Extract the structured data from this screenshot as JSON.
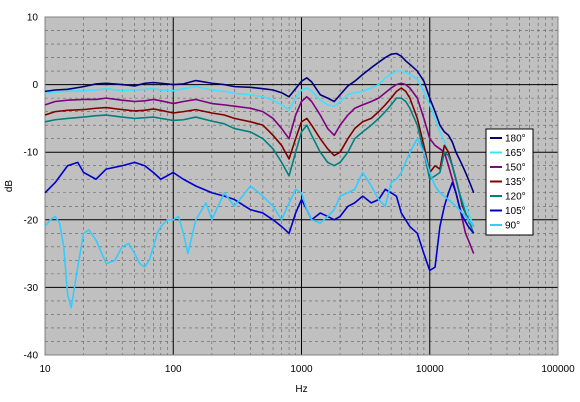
{
  "chart_data": {
    "type": "line",
    "title": "",
    "xlabel": "Hz",
    "ylabel": "dB",
    "x_scale": "log",
    "xlim": [
      10,
      100000
    ],
    "ylim": [
      -40,
      10
    ],
    "x_ticks": [
      10,
      100,
      1000,
      10000,
      100000
    ],
    "x_tick_labels": [
      "10",
      "100",
      "1000",
      "10000",
      "100000"
    ],
    "y_ticks": [
      10,
      0,
      -10,
      -20,
      -30,
      -40
    ],
    "y_tick_labels": [
      "10",
      "0",
      "-10",
      "-20",
      "-30",
      "-40"
    ],
    "grid": "major solid, minor dashed",
    "legend_position": "right",
    "plot_background": "#c0c0c0",
    "series": [
      {
        "name": "180°",
        "color": "#000080",
        "x": [
          10,
          12,
          15,
          20,
          25,
          30,
          40,
          50,
          60,
          70,
          80,
          100,
          120,
          150,
          200,
          250,
          300,
          400,
          500,
          600,
          700,
          800,
          900,
          1000,
          1100,
          1200,
          1400,
          1600,
          1800,
          2000,
          2300,
          2600,
          3000,
          3500,
          4000,
          4500,
          5000,
          5500,
          6000,
          6500,
          7000,
          8000,
          9000,
          10000,
          11000,
          12000,
          13000,
          14000,
          15000,
          16000,
          17000,
          18000,
          19000,
          20000,
          21000,
          22000
        ],
        "y": [
          -1,
          -0.8,
          -0.7,
          -0.3,
          0.1,
          0.2,
          0,
          -0.2,
          0.2,
          0.3,
          0.2,
          0,
          0.1,
          0.6,
          0.2,
          0,
          -0.3,
          -0.4,
          -0.6,
          -0.8,
          -1.2,
          -1.8,
          -0.6,
          0.5,
          1.0,
          0.4,
          -1.5,
          -2.0,
          -2.5,
          -1.5,
          -0.2,
          0.5,
          1.5,
          2.5,
          3.3,
          4.0,
          4.5,
          4.6,
          4.2,
          3.5,
          3.0,
          2.0,
          0.5,
          -2,
          -4,
          -6,
          -7,
          -7.5,
          -8.5,
          -10,
          -11,
          -12,
          -13,
          -14,
          -15,
          -16
        ]
      },
      {
        "name": "165°",
        "color": "#40e0ff",
        "x": [
          10,
          12,
          15,
          20,
          25,
          30,
          40,
          50,
          60,
          70,
          80,
          100,
          120,
          150,
          200,
          250,
          300,
          400,
          500,
          600,
          700,
          800,
          900,
          1000,
          1100,
          1200,
          1400,
          1600,
          1800,
          2000,
          2300,
          2600,
          3000,
          3500,
          4000,
          4500,
          5000,
          5500,
          6000,
          6500,
          7000,
          8000,
          9000,
          10000,
          11000,
          12000,
          13000,
          14000,
          15000,
          16000,
          17000,
          18000,
          19000,
          20000,
          21000,
          22000
        ],
        "y": [
          -1.3,
          -1.1,
          -1.0,
          -0.9,
          -0.8,
          -0.6,
          -0.9,
          -0.8,
          -0.7,
          -0.6,
          -0.8,
          -0.9,
          -0.6,
          -0.3,
          -0.8,
          -1.0,
          -1.3,
          -1.5,
          -1.8,
          -2.3,
          -3.0,
          -3.8,
          -2.0,
          -0.8,
          -0.5,
          -1.0,
          -2.3,
          -3.0,
          -3.2,
          -2.5,
          -1.5,
          -1.2,
          -1.0,
          -0.5,
          0,
          1.0,
          1.5,
          2.0,
          2.0,
          1.8,
          1.5,
          0.8,
          -1,
          -3,
          -5,
          -7,
          -8.5,
          -10,
          -12,
          -14,
          -16,
          -17,
          -18,
          -19,
          -20,
          -21
        ]
      },
      {
        "name": "150°",
        "color": "#800080",
        "x": [
          10,
          12,
          15,
          20,
          25,
          30,
          40,
          50,
          60,
          70,
          80,
          100,
          120,
          150,
          200,
          250,
          300,
          400,
          500,
          600,
          700,
          800,
          900,
          1000,
          1100,
          1200,
          1400,
          1600,
          1800,
          2000,
          2300,
          2600,
          3000,
          3500,
          4000,
          4500,
          5000,
          5500,
          6000,
          6500,
          7000,
          8000,
          9000,
          10000,
          11000,
          12000,
          13000,
          14000,
          15000,
          16000,
          17000,
          18000,
          19000,
          20000,
          21000,
          22000
        ],
        "y": [
          -3,
          -2.5,
          -2.3,
          -2.2,
          -2.2,
          -2.0,
          -2.3,
          -2.5,
          -2.4,
          -2.2,
          -2.4,
          -2.8,
          -2.5,
          -2.2,
          -2.8,
          -3.0,
          -3.2,
          -3.5,
          -4.0,
          -5.0,
          -6.5,
          -8.0,
          -4.5,
          -2.5,
          -1.8,
          -2.5,
          -4.5,
          -6.5,
          -7.5,
          -6.0,
          -4.5,
          -3.5,
          -3.0,
          -2.5,
          -2.0,
          -1.2,
          -0.5,
          0,
          0.2,
          0,
          -0.5,
          -2,
          -5,
          -8,
          -9,
          -9.5,
          -10,
          -12,
          -14,
          -16,
          -18,
          -20,
          -22,
          -23,
          -24,
          -25
        ]
      },
      {
        "name": "135°",
        "color": "#800000",
        "x": [
          10,
          12,
          15,
          20,
          25,
          30,
          40,
          50,
          60,
          70,
          80,
          100,
          120,
          150,
          200,
          250,
          300,
          400,
          500,
          600,
          700,
          800,
          900,
          1000,
          1100,
          1200,
          1400,
          1600,
          1800,
          2000,
          2300,
          2600,
          3000,
          3500,
          4000,
          4500,
          5000,
          5500,
          6000,
          6500,
          7000,
          8000,
          9000,
          10000,
          11000,
          12000,
          13000,
          14000,
          15000,
          16000,
          17000,
          18000,
          19000,
          20000,
          21000,
          22000
        ],
        "y": [
          -4.5,
          -4.0,
          -3.8,
          -3.7,
          -3.5,
          -3.4,
          -3.7,
          -3.9,
          -3.8,
          -3.6,
          -3.8,
          -4.2,
          -4.0,
          -3.7,
          -4.2,
          -4.5,
          -5.0,
          -5.5,
          -6.0,
          -7.5,
          -9.0,
          -11.0,
          -8.0,
          -5.5,
          -5.0,
          -6.0,
          -8.0,
          -9.5,
          -10.5,
          -10.0,
          -8.0,
          -6.5,
          -5.5,
          -5.0,
          -4.0,
          -3.0,
          -2.0,
          -1.0,
          -0.5,
          -1.0,
          -2.0,
          -5,
          -9,
          -13,
          -12,
          -12.5,
          -9,
          -10,
          -12,
          -14,
          -16,
          -18,
          -19,
          -20,
          -20.5,
          -21
        ]
      },
      {
        "name": "120°",
        "color": "#008080",
        "x": [
          10,
          12,
          15,
          20,
          25,
          30,
          40,
          50,
          60,
          70,
          80,
          100,
          120,
          150,
          200,
          250,
          300,
          400,
          500,
          600,
          700,
          800,
          900,
          1000,
          1100,
          1200,
          1400,
          1600,
          1800,
          2000,
          2300,
          2600,
          3000,
          3500,
          4000,
          4500,
          5000,
          5500,
          6000,
          6500,
          7000,
          8000,
          9000,
          10000,
          11000,
          12000,
          13000,
          14000,
          15000,
          16000,
          17000,
          18000,
          19000,
          20000,
          21000,
          22000
        ],
        "y": [
          -5.5,
          -5.2,
          -5.0,
          -4.8,
          -4.6,
          -4.5,
          -4.8,
          -5.0,
          -4.9,
          -4.8,
          -5.0,
          -5.3,
          -5.2,
          -4.8,
          -5.4,
          -5.8,
          -6.5,
          -7.0,
          -8.0,
          -9.5,
          -11.5,
          -13.5,
          -10.0,
          -7.0,
          -6.0,
          -7.5,
          -10.0,
          -11.5,
          -12.0,
          -11.5,
          -10.0,
          -8.0,
          -7.0,
          -6.0,
          -5.0,
          -4.0,
          -3.0,
          -2.0,
          -2.0,
          -2.5,
          -3.5,
          -6,
          -10,
          -14,
          -13.5,
          -13,
          -10,
          -10.5,
          -12,
          -14,
          -16,
          -17.5,
          -19,
          -20,
          -21,
          -22
        ]
      },
      {
        "name": "105°",
        "color": "#0000cc",
        "x": [
          10,
          12,
          15,
          18,
          20,
          25,
          30,
          40,
          50,
          60,
          70,
          80,
          100,
          120,
          150,
          200,
          250,
          300,
          400,
          500,
          600,
          700,
          800,
          900,
          1000,
          1100,
          1200,
          1400,
          1600,
          1800,
          2000,
          2300,
          2600,
          3000,
          3500,
          4000,
          4500,
          5000,
          5500,
          6000,
          7000,
          8000,
          9000,
          10000,
          11000,
          12000,
          13000,
          14000,
          15000,
          16000,
          17000,
          18000,
          20000,
          22000
        ],
        "y": [
          -16,
          -14.5,
          -12,
          -11.5,
          -13,
          -14,
          -12.5,
          -12,
          -11.5,
          -12,
          -13,
          -14,
          -13,
          -14,
          -15,
          -16,
          -16.5,
          -17,
          -18.5,
          -19,
          -20,
          -21,
          -22,
          -19,
          -17,
          -18.5,
          -20,
          -19,
          -19.5,
          -20,
          -19.5,
          -18,
          -17.5,
          -16.5,
          -17.5,
          -17,
          -15.5,
          -16,
          -16.5,
          -19,
          -21,
          -22,
          -25,
          -27.5,
          -27,
          -21,
          -18,
          -16,
          -14.5,
          -16,
          -18,
          -19.5,
          -21,
          -22
        ]
      },
      {
        "name": "90°",
        "color": "#33ccff",
        "x": [
          10,
          11,
          12,
          13,
          14,
          15,
          16,
          18,
          20,
          22,
          25,
          30,
          35,
          40,
          45,
          50,
          55,
          60,
          65,
          70,
          75,
          80,
          90,
          100,
          110,
          120,
          130,
          150,
          180,
          200,
          250,
          300,
          400,
          500,
          600,
          700,
          800,
          900,
          1000,
          1100,
          1200,
          1400,
          1600,
          1800,
          2000,
          2300,
          2600,
          3000,
          3500,
          4000,
          4500,
          5000,
          5500,
          6000,
          7000,
          8000,
          9000,
          10000,
          11000,
          12000,
          14000,
          16000,
          18000,
          20000,
          22000
        ],
        "y": [
          -21,
          -20,
          -19.5,
          -20.5,
          -24,
          -31,
          -33,
          -27,
          -22,
          -21.5,
          -23,
          -26.5,
          -26,
          -24,
          -23.5,
          -25,
          -26.5,
          -27,
          -26,
          -24,
          -22,
          -21,
          -20,
          -20,
          -19.5,
          -22,
          -25,
          -20,
          -17.5,
          -20,
          -16,
          -18,
          -15,
          -16.5,
          -18,
          -20,
          -17.5,
          -15.5,
          -16,
          -18.5,
          -20,
          -20.5,
          -19.5,
          -18.5,
          -16.5,
          -16,
          -15.5,
          -13,
          -15,
          -17,
          -18,
          -14.5,
          -14,
          -13,
          -10,
          -8,
          -10,
          -13,
          -15,
          -16,
          -17,
          -18,
          -19,
          -20,
          -21
        ]
      }
    ]
  }
}
